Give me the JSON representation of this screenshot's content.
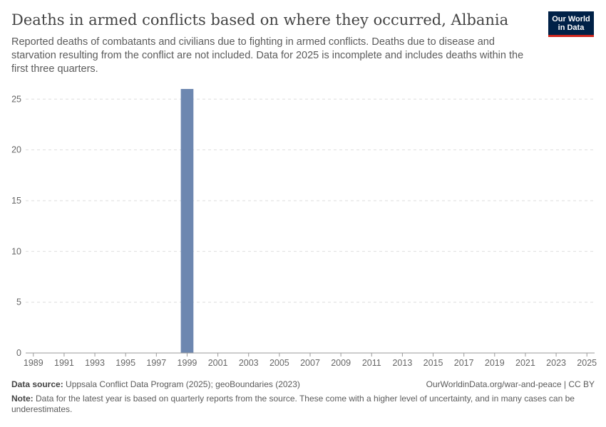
{
  "header": {
    "title": "Deaths in armed conflicts based on where they occurred, Albania",
    "subtitle": "Reported deaths of combatants and civilians due to fighting in armed conflicts. Deaths due to disease and starvation resulting from the conflict are not included. Data for 2025 is incomplete and includes deaths within the first three quarters."
  },
  "logo": {
    "line1": "Our World",
    "line2": "in Data"
  },
  "chart_data": {
    "type": "bar",
    "title": "Deaths in armed conflicts based on where they occurred, Albania",
    "x": [
      1989,
      1990,
      1991,
      1992,
      1993,
      1994,
      1995,
      1996,
      1997,
      1998,
      1999,
      2000,
      2001,
      2002,
      2003,
      2004,
      2005,
      2006,
      2007,
      2008,
      2009,
      2010,
      2011,
      2012,
      2013,
      2014,
      2015,
      2016,
      2017,
      2018,
      2019,
      2020,
      2021,
      2022,
      2023,
      2024,
      2025
    ],
    "values": [
      0,
      0,
      0,
      0,
      0,
      0,
      0,
      0,
      0,
      0,
      26,
      0,
      0,
      0,
      0,
      0,
      0,
      0,
      0,
      0,
      0,
      0,
      0,
      0,
      0,
      0,
      0,
      0,
      0,
      0,
      0,
      0,
      0,
      0,
      0,
      0,
      0
    ],
    "x_ticks": [
      "1989",
      "1991",
      "1993",
      "1995",
      "1997",
      "1999",
      "2001",
      "2003",
      "2005",
      "2007",
      "2009",
      "2011",
      "2013",
      "2015",
      "2017",
      "2019",
      "2021",
      "2023",
      "2025"
    ],
    "y_ticks": [
      "0",
      "5",
      "10",
      "15",
      "20",
      "25"
    ],
    "ylim": [
      0,
      26
    ],
    "grid": "horizontal dashed",
    "bar_color": "#6d87b0"
  },
  "footer": {
    "source_label": "Data source:",
    "source_text": "Uppsala Conflict Data Program (2025); geoBoundaries (2023)",
    "url_text": "OurWorldinData.org/war-and-peace | CC BY",
    "note_label": "Note:",
    "note_text": "Data for the latest year is based on quarterly reports from the source. These come with a higher level of uncertainty, and in many cases can be underestimates."
  }
}
